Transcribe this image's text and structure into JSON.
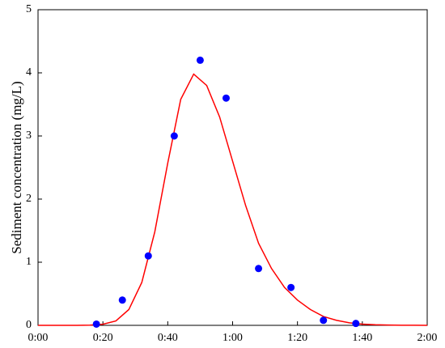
{
  "chart_data": {
    "type": "scatter",
    "y_label": "Sediment concentration (mg/L)",
    "xlim": [
      0,
      120
    ],
    "xticks": [
      {
        "value": 0,
        "label": "0:00"
      },
      {
        "value": 20,
        "label": "0:20"
      },
      {
        "value": 40,
        "label": "0:40"
      },
      {
        "value": 60,
        "label": "1:00"
      },
      {
        "value": 80,
        "label": "1:20"
      },
      {
        "value": 100,
        "label": "1:40"
      },
      {
        "value": 120,
        "label": "2:00"
      }
    ],
    "ylim": [
      0,
      5
    ],
    "yticks": [
      0,
      1,
      2,
      3,
      4,
      5
    ],
    "series": [
      {
        "color": "#ff0000",
        "style": "line",
        "x": [
          0,
          8,
          12,
          16,
          20,
          24,
          28,
          32,
          36,
          40,
          44,
          48,
          52,
          56,
          60,
          64,
          68,
          72,
          76,
          80,
          84,
          88,
          92,
          96,
          100,
          104,
          108,
          112,
          116,
          120
        ],
        "values": [
          0,
          0,
          0,
          0.003,
          0.018,
          0.07,
          0.25,
          0.68,
          1.48,
          2.57,
          3.58,
          3.98,
          3.8,
          3.3,
          2.6,
          1.9,
          1.3,
          0.9,
          0.6,
          0.4,
          0.25,
          0.14,
          0.08,
          0.04,
          0.02,
          0.01,
          0.005,
          0.002,
          0.001,
          0
        ]
      },
      {
        "color": "#0000ff",
        "style": "markers",
        "x": [
          18,
          26,
          34,
          42,
          50,
          58,
          68,
          78,
          88,
          98
        ],
        "values": [
          0.02,
          0.4,
          1.1,
          3.0,
          4.2,
          3.6,
          0.9,
          0.6,
          0.08,
          0.03
        ]
      }
    ]
  }
}
